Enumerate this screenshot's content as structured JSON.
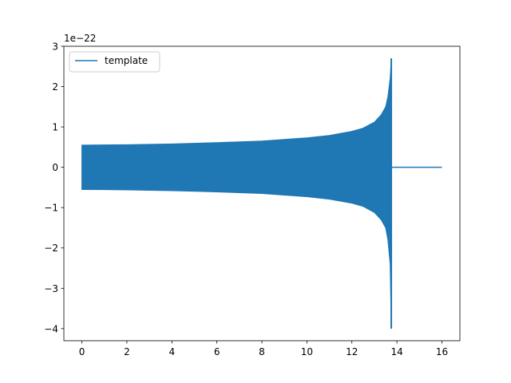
{
  "chart_data": {
    "type": "line",
    "title": "",
    "xlabel": "",
    "ylabel": "",
    "y_offset_label": "1e−22",
    "xlim": [
      -0.8,
      16.8
    ],
    "ylim": [
      -4.3,
      3.0
    ],
    "x_ticks": [
      0,
      2,
      4,
      6,
      8,
      10,
      12,
      14,
      16
    ],
    "x_tick_labels": [
      "0",
      "2",
      "4",
      "6",
      "8",
      "10",
      "12",
      "14",
      "16"
    ],
    "y_ticks": [
      3,
      2,
      1,
      0,
      -1,
      -2,
      -3,
      -4
    ],
    "y_tick_labels": [
      "3",
      "2",
      "1",
      "0",
      "−1",
      "−2",
      "−3",
      "−4"
    ],
    "grid": false,
    "legend": {
      "placement": "top-left",
      "entries": [
        "template"
      ]
    },
    "series": [
      {
        "name": "template",
        "color": "#1f77b4",
        "description_points": {
          "x": [
            0.0,
            2.0,
            4.0,
            6.0,
            8.0,
            10.0,
            11.0,
            12.0,
            12.5,
            13.0,
            13.3,
            13.5,
            13.6,
            13.7,
            13.75,
            13.8,
            16.0
          ],
          "upper": [
            0.55,
            0.56,
            0.58,
            0.61,
            0.65,
            0.73,
            0.79,
            0.89,
            0.97,
            1.12,
            1.3,
            1.5,
            1.75,
            2.2,
            2.7,
            0.0,
            0.0
          ],
          "lower": [
            -0.55,
            -0.56,
            -0.58,
            -0.61,
            -0.65,
            -0.73,
            -0.79,
            -0.89,
            -0.97,
            -1.12,
            -1.3,
            -1.5,
            -1.8,
            -2.4,
            -4.0,
            0.0,
            0.0
          ]
        }
      }
    ]
  }
}
